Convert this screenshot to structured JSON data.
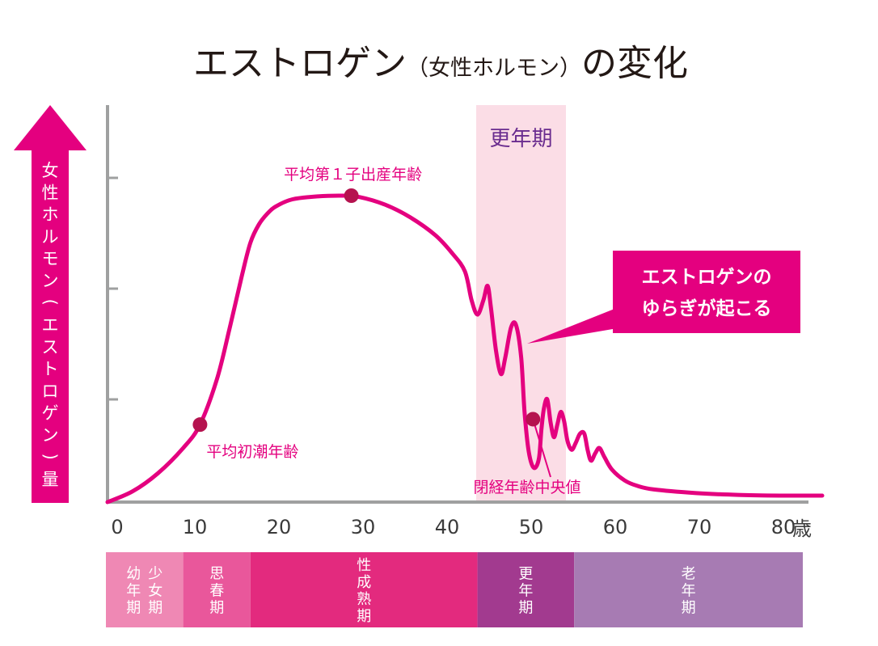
{
  "title": {
    "main_prefix": "エストロゲン",
    "sub": "（女性ホルモン）",
    "main_suffix": "の変化"
  },
  "y_axis_label_chars": [
    "女",
    "性",
    "ホ",
    "ル",
    "モ",
    "ン",
    "(",
    "エ",
    "ス",
    "ト",
    "ロ",
    "ゲ",
    "ン",
    ")",
    "量"
  ],
  "x_axis_unit": "歳",
  "menopause_band_label": "更年期",
  "callout_lines": [
    "エストロゲンの",
    "ゆらぎが起こる"
  ],
  "annotations": {
    "menarche": "平均初潮年齢",
    "first_birth": "平均第１子出産年齢",
    "menopause": "閉経年齢中央値"
  },
  "stages": [
    {
      "columns": [
        [
          "幼",
          "年",
          "期"
        ],
        [
          "少",
          "女",
          "期"
        ]
      ],
      "start": 0,
      "end": 9,
      "color": "#ef88b4"
    },
    {
      "columns": [
        [
          "思",
          "春",
          "期"
        ]
      ],
      "start": 9,
      "end": 17,
      "color": "#e9579b"
    },
    {
      "columns": [
        [
          "性",
          "成",
          "熟",
          "期"
        ]
      ],
      "start": 17,
      "end": 44,
      "color": "#e32a7e"
    },
    {
      "columns": [
        [
          "更",
          "年",
          "期"
        ]
      ],
      "start": 44,
      "end": 55.5,
      "color": "#a23a8f"
    },
    {
      "columns": [
        [
          "老",
          "年",
          "期"
        ]
      ],
      "start": 55.5,
      "end": 85,
      "color": "#a77bb3"
    }
  ],
  "chart_data": {
    "type": "line",
    "title": "エストロゲン（女性ホルモン）の変化",
    "xlabel": "歳",
    "ylabel": "女性ホルモン(エストロゲン)量",
    "xlim": [
      0,
      85
    ],
    "ylim": [
      0,
      100
    ],
    "x_ticks": [
      0,
      10,
      20,
      30,
      40,
      50,
      60,
      70,
      80
    ],
    "y_ticks": [
      25,
      50,
      75
    ],
    "grid": false,
    "legend": "none",
    "colors": {
      "line": "#e4007f",
      "marker": "#b5134f",
      "band": "#fbdde6"
    },
    "shaded_region": {
      "label": "更年期",
      "x": [
        44,
        55.5
      ]
    },
    "series": [
      {
        "x": [
          0,
          3,
          6,
          9,
          11,
          13,
          14.5,
          16,
          17,
          18,
          19,
          20,
          22,
          25,
          28,
          30,
          33,
          36,
          39,
          41,
          42.5,
          43.3,
          44,
          44.7,
          45.2,
          45.6,
          46.2,
          46.8,
          47.3,
          48,
          48.6,
          49.2,
          49.6,
          50.1,
          50.7,
          51.3,
          51.6,
          51.9,
          52.3,
          52.7,
          53.1,
          53.5,
          53.9,
          54.3,
          54.7,
          55.2,
          55.7,
          56.2,
          56.7,
          57.1,
          57.5,
          58,
          58.5,
          59.1,
          60,
          61.5,
          63,
          65,
          70,
          75,
          80,
          85
        ],
        "y": [
          0,
          3,
          8,
          15,
          21.5,
          34,
          48,
          63,
          72,
          77,
          80,
          82,
          84,
          84.8,
          85,
          84.6,
          82.5,
          79,
          74,
          69,
          64,
          56,
          52,
          56,
          60,
          54,
          42,
          35.5,
          40,
          48.5,
          49,
          40,
          25,
          14,
          9.5,
          12,
          20,
          26,
          28.5,
          22,
          18,
          21.5,
          25,
          22.5,
          17,
          14.5,
          16.5,
          19,
          19,
          14.5,
          11.5,
          13.5,
          15,
          12.5,
          9,
          6,
          4.5,
          3.5,
          2.5,
          2,
          1.8,
          1.8
        ]
      }
    ],
    "markers": [
      {
        "x": 11,
        "y": 21.5,
        "label": "平均初潮年齢"
      },
      {
        "x": 29,
        "y": 85,
        "label": "平均第１子出産年齢"
      },
      {
        "x": 50.6,
        "y": 23,
        "label": "閉経年齢中央値"
      }
    ]
  }
}
